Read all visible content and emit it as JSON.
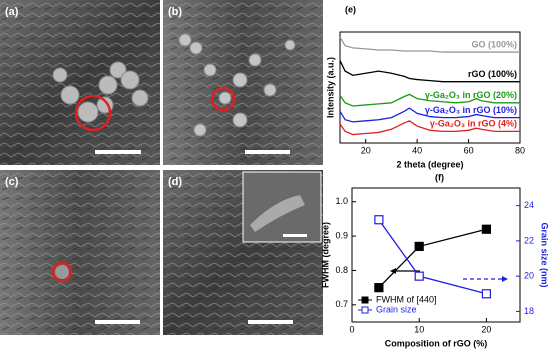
{
  "panels": [
    {
      "label": "(a)"
    },
    {
      "label": "(b)"
    },
    {
      "label": "(c)"
    },
    {
      "label": "(d)"
    }
  ],
  "chart_data": [
    {
      "type": "line",
      "title": "(e)",
      "x_label": "2 theta (degree)",
      "y_label": "Intensity (a.u.)",
      "x": [
        10,
        12,
        15,
        20,
        25,
        30,
        35,
        37,
        40,
        45,
        50,
        55,
        60,
        63,
        65,
        70,
        75,
        80
      ],
      "xlim": [
        10,
        80
      ],
      "xticks": [
        20,
        40,
        60,
        80
      ],
      "ylim": [
        0,
        105
      ],
      "series": [
        {
          "name": "GO (100%)",
          "color": "#999999",
          "values": [
            100,
            92,
            90,
            89,
            88,
            88,
            87,
            87,
            87,
            87,
            86,
            86,
            86,
            86,
            86,
            86,
            86,
            86
          ]
        },
        {
          "name": "rGO (100%)",
          "color": "#000000",
          "values": [
            78,
            68,
            64,
            66,
            68,
            66,
            63,
            61,
            60,
            59,
            58,
            58,
            58,
            58,
            58,
            58,
            58,
            58
          ]
        },
        {
          "name": "γ-Ga₂O₃ in rGO (20%)",
          "color": "#1a9a1a",
          "values": [
            45,
            38,
            35,
            36,
            37,
            38,
            44,
            46,
            42,
            40,
            39,
            38,
            39,
            42,
            40,
            38,
            38,
            38
          ]
        },
        {
          "name": "γ-Ga₂O₃ in rGO (10%)",
          "color": "#1f1fe0",
          "values": [
            30,
            22,
            20,
            21,
            22,
            24,
            30,
            33,
            28,
            25,
            24,
            24,
            25,
            27,
            26,
            24,
            24,
            24
          ]
        },
        {
          "name": "γ-Ga₂O₃ in rGO (4%)",
          "color": "#e02020",
          "values": [
            18,
            11,
            8,
            9,
            10,
            13,
            19,
            21,
            16,
            12,
            11,
            11,
            12,
            14,
            13,
            11,
            11,
            11
          ]
        }
      ]
    },
    {
      "type": "line",
      "title": "(f)",
      "x_label": "Composition of rGO (%)",
      "y_label": "FWHM (degree)",
      "y2_label": "Grain size (nm)",
      "x": [
        4,
        10,
        20
      ],
      "xlim": [
        0,
        25
      ],
      "xticks": [
        0,
        10,
        20
      ],
      "ylim": [
        0.65,
        1.04
      ],
      "yticks": [
        0.7,
        0.8,
        0.9,
        {
          "value": 1,
          "label": "1.0"
        }
      ],
      "y2lim": [
        17.4,
        25
      ],
      "y2ticks": [
        18,
        20,
        22,
        24
      ],
      "legend": "lower left",
      "series": [
        {
          "name": "FWHM of [440]",
          "color": "#000000",
          "marker": "filled-square",
          "values": [
            0.75,
            0.87,
            0.92
          ]
        },
        {
          "name": "Grain size",
          "color": "#1f1fe0",
          "marker": "open-square",
          "axis": "y2",
          "values": [
            23.2,
            20,
            19
          ]
        }
      ]
    }
  ]
}
